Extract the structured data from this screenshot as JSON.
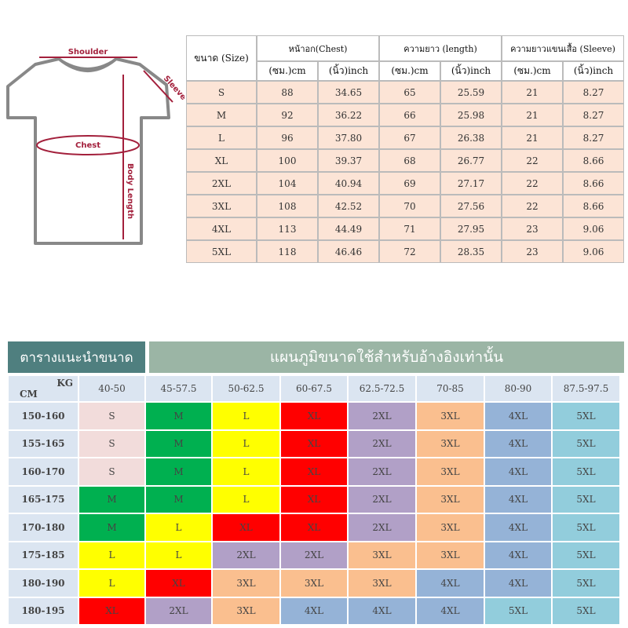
{
  "diagram": {
    "shoulder": "Shoulder",
    "sleeve": "Sleeve",
    "chest": "Chest",
    "body_length": "Body Length"
  },
  "size_table": {
    "size_header": "ขนาด (Size)",
    "groups": [
      {
        "title": "หน้าอก(Chest)",
        "units": [
          "(ซม.)cm",
          "(นิ้ว)inch"
        ]
      },
      {
        "title": "ความยาว (length)",
        "units": [
          "(ซม.)cm",
          "(นิ้ว)inch"
        ]
      },
      {
        "title": "ความยาวแขนเสื้อ (Sleeve)",
        "units": [
          "(ซม.)cm",
          "(นิ้ว)inch"
        ]
      }
    ],
    "rows": [
      [
        "S",
        "88",
        "34.65",
        "65",
        "25.59",
        "21",
        "8.27"
      ],
      [
        "M",
        "92",
        "36.22",
        "66",
        "25.98",
        "21",
        "8.27"
      ],
      [
        "L",
        "96",
        "37.80",
        "67",
        "26.38",
        "21",
        "8.27"
      ],
      [
        "XL",
        "100",
        "39.37",
        "68",
        "26.77",
        "22",
        "8.66"
      ],
      [
        "2XL",
        "104",
        "40.94",
        "69",
        "27.17",
        "22",
        "8.66"
      ],
      [
        "3XL",
        "108",
        "42.52",
        "70",
        "27.56",
        "22",
        "8.66"
      ],
      [
        "4XL",
        "113",
        "44.49",
        "71",
        "27.95",
        "23",
        "9.06"
      ],
      [
        "5XL",
        "118",
        "46.46",
        "72",
        "28.35",
        "23",
        "9.06"
      ]
    ]
  },
  "recommend_table": {
    "title": "ตารางแนะนำขนาด",
    "subtitle": "แผนภูมิขนาดใช้สำหรับอ้างอิงเท่านั้น",
    "corner_cm": "CM",
    "corner_kg": "KG",
    "kg": [
      "40-50",
      "45-57.5",
      "50-62.5",
      "60-67.5",
      "62.5-72.5",
      "70-85",
      "80-90",
      "87.5-97.5"
    ],
    "rows": [
      {
        "cm": "150-160",
        "sizes": [
          "S",
          "M",
          "L",
          "XL",
          "2XL",
          "3XL",
          "4XL",
          "5XL"
        ]
      },
      {
        "cm": "155-165",
        "sizes": [
          "S",
          "M",
          "L",
          "XL",
          "2XL",
          "3XL",
          "4XL",
          "5XL"
        ]
      },
      {
        "cm": "160-170",
        "sizes": [
          "S",
          "M",
          "L",
          "XL",
          "2XL",
          "3XL",
          "4XL",
          "5XL"
        ]
      },
      {
        "cm": "165-175",
        "sizes": [
          "M",
          "M",
          "L",
          "XL",
          "2XL",
          "3XL",
          "4XL",
          "5XL"
        ]
      },
      {
        "cm": "170-180",
        "sizes": [
          "M",
          "L",
          "XL",
          "XL",
          "2XL",
          "3XL",
          "4XL",
          "5XL"
        ]
      },
      {
        "cm": "175-185",
        "sizes": [
          "L",
          "L",
          "2XL",
          "2XL",
          "3XL",
          "3XL",
          "4XL",
          "5XL"
        ]
      },
      {
        "cm": "180-190",
        "sizes": [
          "L",
          "XL",
          "3XL",
          "3XL",
          "3XL",
          "4XL",
          "4XL",
          "5XL"
        ]
      },
      {
        "cm": "180-195",
        "sizes": [
          "XL",
          "2XL",
          "3XL",
          "4XL",
          "4XL",
          "4XL",
          "5XL",
          "5XL"
        ]
      }
    ],
    "size_colors": {
      "S": "#f2dcdb",
      "M": "#00b050",
      "L": "#ffff00",
      "XL": "#ff0000",
      "2XL": "#b1a0c7",
      "3XL": "#fabf8f",
      "4XL": "#95b3d7",
      "5XL": "#92cddc"
    }
  }
}
